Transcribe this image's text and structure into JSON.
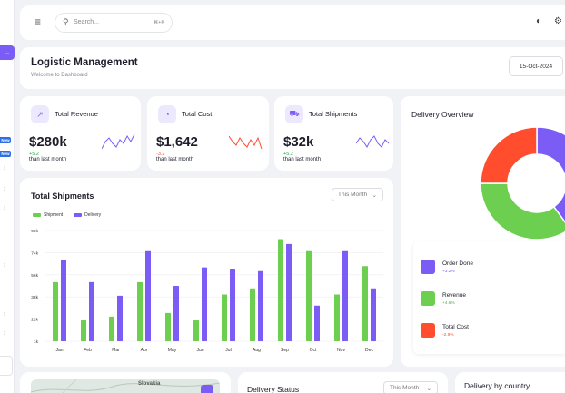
{
  "search": {
    "placeholder": "Search...",
    "shortcut": "⌘+K"
  },
  "sidebar": {
    "badges": [
      "New",
      "New"
    ]
  },
  "header": {
    "title": "Logistic Management",
    "subtitle": "Welcome to Dashboard",
    "date": "15-Oct-2024"
  },
  "stats": [
    {
      "label": "Total Revenue",
      "value": "$280k",
      "delta": "+5.2",
      "foot": "than last month",
      "color": "#7b5cf5",
      "delta_color": "#2ea44f"
    },
    {
      "label": "Total Cost",
      "value": "$1,642",
      "delta": "-3.2",
      "foot": "than last month",
      "color": "#ff4d2e",
      "delta_color": "#ff4d2e"
    },
    {
      "label": "Total Shipments",
      "value": "$32k",
      "delta": "+5.2",
      "foot": "than last month",
      "color": "#7b5cf5",
      "delta_color": "#2ea44f"
    }
  ],
  "shipments": {
    "title": "Total Shipments",
    "filter": "This Month"
  },
  "chart_data": {
    "type": "bar",
    "categories": [
      "Jan",
      "Feb",
      "Mar",
      "Apr",
      "May",
      "Jun",
      "Jul",
      "Aug",
      "Sep",
      "Oct",
      "Nov",
      "Dec"
    ],
    "series": [
      {
        "name": "Shipment",
        "color": "#6ccf4f",
        "values": [
          48,
          17,
          20,
          48,
          23,
          17,
          38,
          43,
          83,
          74,
          38,
          61
        ]
      },
      {
        "name": "Delivery",
        "color": "#7b5cf5",
        "values": [
          66,
          48,
          37,
          74,
          45,
          60,
          59,
          57,
          79,
          29,
          74,
          43
        ]
      }
    ],
    "yticks": [
      "1k",
      "22k",
      "38k",
      "56k",
      "74k",
      "90k"
    ],
    "ylim": [
      0,
      90
    ]
  },
  "overview": {
    "title": "Delivery Overview",
    "items": [
      {
        "name": "Order Done",
        "pct": "+3.2%",
        "color": "#7b5cf5"
      },
      {
        "name": "Revenue",
        "pct": "+4.6%",
        "color": "#6ccf4f"
      },
      {
        "name": "Total Cost",
        "pct": "-2.9%",
        "color": "#ff4d2e"
      }
    ],
    "donut": {
      "purple": 40,
      "green": 35,
      "red": 25
    }
  },
  "bottom": {
    "map_label": "Slovakia",
    "status_title": "Delivery Status",
    "status_filter": "This Month",
    "country_title": "Delivery by country"
  }
}
